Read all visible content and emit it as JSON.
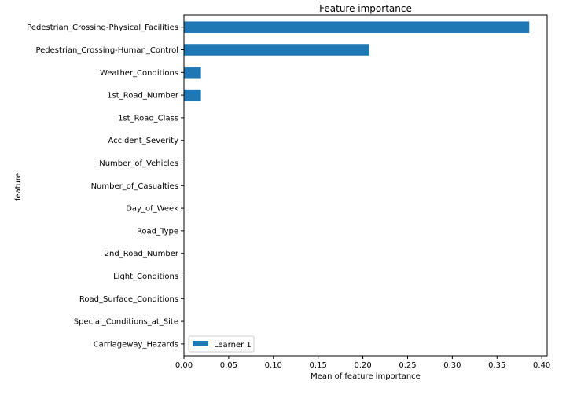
{
  "chart_data": {
    "type": "bar",
    "orientation": "horizontal",
    "title": "Feature importance",
    "xlabel": "Mean of feature importance",
    "ylabel": "feature",
    "xlim": [
      0.0,
      0.406
    ],
    "xticks": [
      0.0,
      0.05,
      0.1,
      0.15,
      0.2,
      0.25,
      0.3,
      0.35,
      0.4
    ],
    "xtick_labels": [
      "0.00",
      "0.05",
      "0.10",
      "0.15",
      "0.20",
      "0.25",
      "0.30",
      "0.35",
      "0.40"
    ],
    "categories": [
      "Pedestrian_Crossing-Physical_Facilities",
      "Pedestrian_Crossing-Human_Control",
      "Weather_Conditions",
      "1st_Road_Number",
      "1st_Road_Class",
      "Accident_Severity",
      "Number_of_Vehicles",
      "Number_of_Casualties",
      "Day_of_Week",
      "Road_Type",
      "2nd_Road_Number",
      "Light_Conditions",
      "Road_Surface_Conditions",
      "Special_Conditions_at_Site",
      "Carriageway_Hazards"
    ],
    "series": [
      {
        "name": "Learner 1",
        "color": "#1f77b4",
        "values": [
          0.386,
          0.207,
          0.019,
          0.019,
          0,
          0,
          0,
          0,
          0,
          0,
          0,
          0,
          0,
          0,
          0
        ]
      }
    ],
    "grid": false,
    "legend": "lower-left"
  }
}
